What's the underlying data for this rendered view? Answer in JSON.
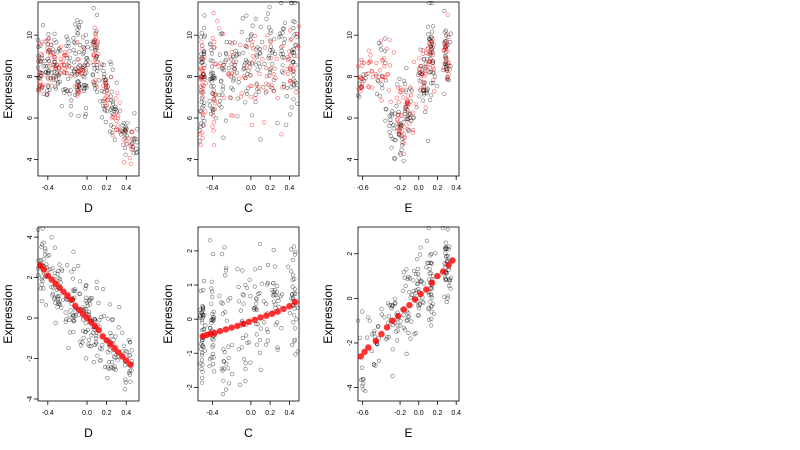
{
  "figure": {
    "colors": {
      "observed": "#000000",
      "fitted": "#ff0000"
    }
  },
  "chart_data": [
    {
      "type": "scatter",
      "panel": "top-left",
      "xlabel": "D",
      "ylabel": "Expression",
      "xlim": [
        -0.5,
        0.53
      ],
      "ylim": [
        3.2,
        11.6
      ],
      "xticks": [
        -0.4,
        0.0,
        0.2,
        0.4
      ],
      "xtick_labels": [
        "-0.4",
        "0.0",
        "0.2",
        "0.4"
      ],
      "yticks": [
        4,
        6,
        8,
        10
      ],
      "ytick_labels": [
        "4",
        "6",
        "8",
        "10"
      ],
      "series": [
        {
          "color": "#000000",
          "marker": "open-circle",
          "clusters": [
            [
              -0.48,
              8.3,
              0.02,
              0.9,
              25
            ],
            [
              -0.4,
              8.4,
              0.02,
              0.9,
              25
            ],
            [
              -0.32,
              8.5,
              0.03,
              0.8,
              30
            ],
            [
              -0.18,
              8.5,
              0.04,
              0.9,
              35
            ],
            [
              -0.1,
              8.6,
              0.03,
              1.1,
              35
            ],
            [
              -0.02,
              8.3,
              0.02,
              0.9,
              30
            ],
            [
              0.08,
              9.0,
              0.02,
              1.0,
              30
            ],
            [
              0.18,
              7.5,
              0.02,
              0.9,
              25
            ],
            [
              0.26,
              6.5,
              0.02,
              0.8,
              25
            ],
            [
              0.38,
              5.2,
              0.02,
              0.6,
              20
            ],
            [
              0.48,
              4.9,
              0.02,
              0.5,
              15
            ]
          ]
        },
        {
          "color": "#ff0000",
          "marker": "open-circle",
          "clusters": [
            [
              -0.48,
              8.0,
              0.02,
              0.6,
              15
            ],
            [
              -0.38,
              8.5,
              0.03,
              0.7,
              20
            ],
            [
              -0.25,
              8.6,
              0.05,
              0.6,
              25
            ],
            [
              -0.08,
              8.2,
              0.03,
              0.7,
              20
            ],
            [
              0.08,
              9.1,
              0.02,
              0.8,
              20
            ],
            [
              0.2,
              7.2,
              0.02,
              0.6,
              15
            ],
            [
              0.3,
              6.0,
              0.03,
              0.5,
              15
            ],
            [
              0.42,
              5.0,
              0.04,
              0.5,
              15
            ]
          ]
        }
      ]
    },
    {
      "type": "scatter",
      "panel": "top-middle",
      "xlabel": "C",
      "ylabel": "Expression",
      "xlim": [
        -0.55,
        0.5
      ],
      "ylim": [
        3.2,
        11.6
      ],
      "xticks": [
        -0.4,
        0.0,
        0.2,
        0.4
      ],
      "xtick_labels": [
        "-0.4",
        "0.0",
        "0.2",
        "0.4"
      ],
      "yticks": [
        4,
        6,
        8,
        10
      ],
      "ytick_labels": [
        "4",
        "6",
        "8",
        "10"
      ],
      "series": [
        {
          "color": "#000000",
          "marker": "open-circle",
          "clusters": [
            [
              -0.5,
              7.8,
              0.015,
              1.4,
              45
            ],
            [
              -0.4,
              8.0,
              0.015,
              1.0,
              35
            ],
            [
              -0.3,
              8.2,
              0.03,
              1.3,
              25
            ],
            [
              -0.18,
              8.4,
              0.03,
              1.2,
              25
            ],
            [
              -0.05,
              8.6,
              0.03,
              1.2,
              25
            ],
            [
              0.08,
              8.7,
              0.03,
              1.3,
              25
            ],
            [
              0.2,
              8.8,
              0.03,
              1.2,
              25
            ],
            [
              0.33,
              8.9,
              0.03,
              1.3,
              25
            ],
            [
              0.45,
              9.0,
              0.02,
              1.2,
              35
            ]
          ]
        },
        {
          "color": "#ff0000",
          "marker": "open-circle",
          "clusters": [
            [
              -0.5,
              7.2,
              0.015,
              1.5,
              30
            ],
            [
              -0.38,
              7.5,
              0.02,
              1.4,
              20
            ],
            [
              -0.2,
              7.8,
              0.05,
              1.3,
              20
            ],
            [
              0.0,
              8.0,
              0.05,
              1.3,
              20
            ],
            [
              0.2,
              8.2,
              0.05,
              1.3,
              20
            ],
            [
              0.42,
              8.6,
              0.04,
              1.3,
              25
            ]
          ]
        }
      ]
    },
    {
      "type": "scatter",
      "panel": "top-right",
      "xlabel": "E",
      "ylabel": "Expression",
      "xlim": [
        -0.65,
        0.43
      ],
      "ylim": [
        3.2,
        11.6
      ],
      "xticks": [
        -0.6,
        -0.2,
        0.0,
        0.2,
        0.4
      ],
      "xtick_labels": [
        "-0.6",
        "-0.2",
        "0.0",
        "0.2",
        "0.4"
      ],
      "yticks": [
        4,
        6,
        8,
        10
      ],
      "ytick_labels": [
        "4",
        "6",
        "8",
        "10"
      ],
      "series": [
        {
          "color": "#000000",
          "marker": "open-circle",
          "clusters": [
            [
              -0.6,
              7.8,
              0.02,
              0.6,
              10
            ],
            [
              -0.42,
              8.2,
              0.04,
              0.8,
              15
            ],
            [
              -0.3,
              5.8,
              0.04,
              0.8,
              20
            ],
            [
              -0.2,
              5.4,
              0.03,
              0.8,
              25
            ],
            [
              -0.12,
              6.6,
              0.03,
              0.9,
              30
            ],
            [
              0.05,
              7.8,
              0.03,
              1.0,
              30
            ],
            [
              0.13,
              8.9,
              0.02,
              1.0,
              40
            ],
            [
              0.3,
              9.2,
              0.02,
              0.8,
              35
            ]
          ]
        },
        {
          "color": "#ff0000",
          "marker": "open-circle",
          "clusters": [
            [
              -0.62,
              8.0,
              0.02,
              0.5,
              15
            ],
            [
              -0.5,
              8.0,
              0.04,
              0.6,
              15
            ],
            [
              -0.35,
              8.3,
              0.04,
              0.7,
              20
            ],
            [
              -0.2,
              5.8,
              0.04,
              0.9,
              25
            ],
            [
              -0.1,
              6.6,
              0.03,
              0.8,
              20
            ],
            [
              0.05,
              8.0,
              0.03,
              0.8,
              20
            ],
            [
              0.13,
              9.0,
              0.02,
              0.8,
              20
            ],
            [
              0.3,
              9.0,
              0.02,
              0.7,
              20
            ]
          ]
        }
      ]
    },
    {
      "type": "scatter",
      "panel": "bottom-left",
      "xlabel": "D",
      "ylabel": "Expression",
      "xlim": [
        -0.5,
        0.53
      ],
      "ylim": [
        -4.1,
        4.5
      ],
      "xticks": [
        -0.4,
        0.0,
        0.2,
        0.4
      ],
      "xtick_labels": [
        "-0.4",
        "0.0",
        "0.2",
        "0.4"
      ],
      "yticks": [
        -4,
        -2,
        0,
        2,
        4
      ],
      "ytick_labels": [
        "-4",
        "-2",
        "0",
        "2",
        "4"
      ],
      "series": [
        {
          "color": "#000000",
          "marker": "open-circle",
          "clusters": [
            [
              -0.45,
              2.5,
              0.03,
              0.9,
              35
            ],
            [
              -0.3,
              1.6,
              0.05,
              1.0,
              40
            ],
            [
              -0.15,
              0.8,
              0.04,
              1.0,
              40
            ],
            [
              -0.02,
              0.1,
              0.03,
              1.0,
              35
            ],
            [
              0.1,
              -0.7,
              0.04,
              1.0,
              40
            ],
            [
              0.25,
              -1.5,
              0.04,
              0.9,
              35
            ],
            [
              0.42,
              -2.3,
              0.04,
              0.8,
              25
            ]
          ]
        }
      ],
      "fitted": [
        [
          -0.48,
          2.6
        ],
        [
          -0.44,
          2.4
        ],
        [
          -0.4,
          2.1
        ],
        [
          -0.36,
          1.9
        ],
        [
          -0.32,
          1.7
        ],
        [
          -0.28,
          1.5
        ],
        [
          -0.24,
          1.3
        ],
        [
          -0.2,
          1.1
        ],
        [
          -0.16,
          0.9
        ],
        [
          -0.12,
          0.6
        ],
        [
          -0.08,
          0.4
        ],
        [
          -0.04,
          0.2
        ],
        [
          0.0,
          0.0
        ],
        [
          0.04,
          -0.2
        ],
        [
          0.08,
          -0.4
        ],
        [
          0.12,
          -0.6
        ],
        [
          0.16,
          -0.9
        ],
        [
          0.2,
          -1.1
        ],
        [
          0.24,
          -1.3
        ],
        [
          0.28,
          -1.5
        ],
        [
          0.32,
          -1.7
        ],
        [
          0.36,
          -1.9
        ],
        [
          0.4,
          -2.1
        ],
        [
          0.44,
          -2.3
        ]
      ]
    },
    {
      "type": "scatter",
      "panel": "bottom-middle",
      "xlabel": "C",
      "ylabel": "Expression",
      "xlim": [
        -0.55,
        0.5
      ],
      "ylim": [
        -2.4,
        2.7
      ],
      "xticks": [
        -0.4,
        0.0,
        0.2,
        0.4
      ],
      "xtick_labels": [
        "-0.4",
        "0.0",
        "0.2",
        "0.4"
      ],
      "yticks": [
        -2,
        -1,
        0,
        1,
        2
      ],
      "ytick_labels": [
        "-2",
        "-1",
        "0",
        "1",
        "2"
      ],
      "series": [
        {
          "color": "#000000",
          "marker": "open-circle",
          "clusters": [
            [
              -0.5,
              -0.5,
              0.015,
              0.9,
              45
            ],
            [
              -0.4,
              -0.3,
              0.015,
              0.8,
              35
            ],
            [
              -0.25,
              -0.2,
              0.04,
              0.9,
              30
            ],
            [
              -0.08,
              0.0,
              0.04,
              0.9,
              30
            ],
            [
              0.08,
              0.1,
              0.04,
              0.9,
              30
            ],
            [
              0.25,
              0.3,
              0.04,
              0.9,
              30
            ],
            [
              0.44,
              0.5,
              0.02,
              0.8,
              35
            ]
          ]
        }
      ],
      "fitted": [
        [
          -0.5,
          -0.5
        ],
        [
          -0.46,
          -0.46
        ],
        [
          -0.42,
          -0.43
        ],
        [
          -0.38,
          -0.4
        ],
        [
          -0.32,
          -0.35
        ],
        [
          -0.26,
          -0.3
        ],
        [
          -0.2,
          -0.25
        ],
        [
          -0.14,
          -0.2
        ],
        [
          -0.08,
          -0.14
        ],
        [
          -0.02,
          -0.08
        ],
        [
          0.04,
          -0.02
        ],
        [
          0.1,
          0.05
        ],
        [
          0.16,
          0.1
        ],
        [
          0.22,
          0.16
        ],
        [
          0.28,
          0.22
        ],
        [
          0.34,
          0.3
        ],
        [
          0.4,
          0.38
        ],
        [
          0.46,
          0.5
        ]
      ]
    },
    {
      "type": "scatter",
      "panel": "bottom-right",
      "xlabel": "E",
      "ylabel": "Expression",
      "xlim": [
        -0.65,
        0.43
      ],
      "ylim": [
        -4.6,
        3.2
      ],
      "xticks": [
        -0.6,
        -0.2,
        0.0,
        0.2,
        0.4
      ],
      "xtick_labels": [
        "-0.6",
        "-0.2",
        "0.0",
        "0.2",
        "0.4"
      ],
      "yticks": [
        -4,
        -2,
        0,
        2
      ],
      "ytick_labels": [
        "-4",
        "-2",
        "0",
        "2"
      ],
      "series": [
        {
          "color": "#000000",
          "marker": "open-circle",
          "clusters": [
            [
              -0.6,
              -2.8,
              0.02,
              0.8,
              12
            ],
            [
              -0.45,
              -1.6,
              0.05,
              0.8,
              20
            ],
            [
              -0.28,
              -0.9,
              0.05,
              0.9,
              30
            ],
            [
              -0.12,
              -0.3,
              0.04,
              0.9,
              30
            ],
            [
              0.0,
              0.2,
              0.03,
              0.9,
              30
            ],
            [
              0.13,
              0.8,
              0.02,
              1.0,
              40
            ],
            [
              0.3,
              1.3,
              0.02,
              0.9,
              40
            ]
          ]
        }
      ],
      "fitted": [
        [
          -0.62,
          -2.6
        ],
        [
          -0.58,
          -2.4
        ],
        [
          -0.54,
          -2.2
        ],
        [
          -0.46,
          -1.9
        ],
        [
          -0.4,
          -1.6
        ],
        [
          -0.34,
          -1.3
        ],
        [
          -0.28,
          -1.0
        ],
        [
          -0.22,
          -0.8
        ],
        [
          -0.16,
          -0.5
        ],
        [
          -0.1,
          -0.3
        ],
        [
          -0.04,
          -0.05
        ],
        [
          0.02,
          0.2
        ],
        [
          0.08,
          0.4
        ],
        [
          0.14,
          0.7
        ],
        [
          0.2,
          1.0
        ],
        [
          0.26,
          1.2
        ],
        [
          0.32,
          1.5
        ],
        [
          0.36,
          1.7
        ]
      ]
    }
  ]
}
